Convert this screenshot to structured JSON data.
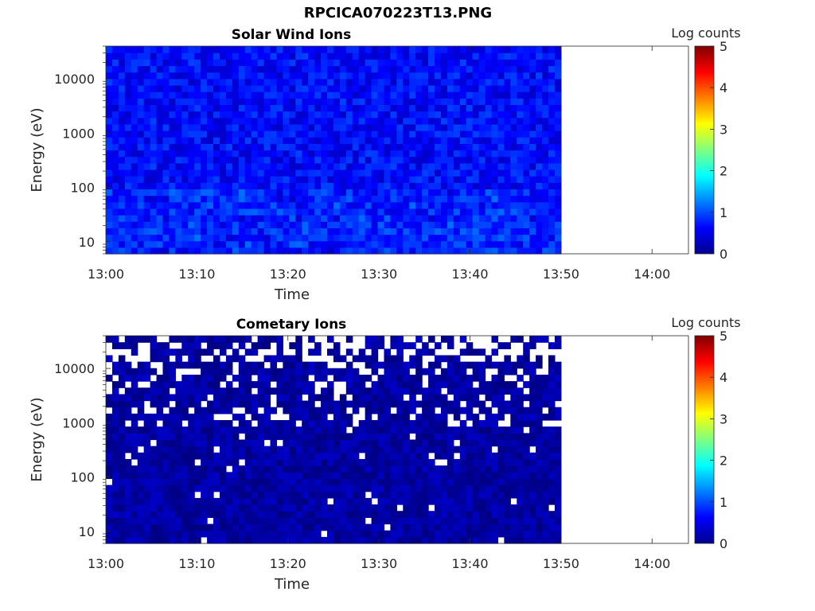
{
  "figure": {
    "title": "RPCICA070223T13.PNG"
  },
  "chart_data": [
    {
      "type": "heatmap",
      "title": "Solar Wind Ions",
      "xlabel": "Time",
      "ylabel": "Energy (eV)",
      "x_ticks": [
        "13:00",
        "13:10",
        "13:20",
        "13:30",
        "13:40",
        "13:50",
        "14:00"
      ],
      "xlim": [
        "13:00",
        "14:04"
      ],
      "data_end": "13:50",
      "y_scale": "log",
      "y_ticks": [
        10,
        100,
        1000,
        10000
      ],
      "ylim": [
        6,
        40000
      ],
      "colorbar": {
        "label": "Log counts",
        "ticks": [
          0,
          1,
          2,
          3,
          4,
          5
        ],
        "range": [
          0,
          5
        ],
        "colormap": "jet"
      },
      "value_description": "mostly 0.3–1.2 log counts across all energies",
      "typical_range": [
        0.3,
        1.2
      ]
    },
    {
      "type": "heatmap",
      "title": "Cometary Ions",
      "xlabel": "Time",
      "ylabel": "Energy (eV)",
      "x_ticks": [
        "13:00",
        "13:10",
        "13:20",
        "13:30",
        "13:40",
        "13:50",
        "14:00"
      ],
      "xlim": [
        "13:00",
        "14:04"
      ],
      "data_end": "13:50",
      "y_scale": "log",
      "y_ticks": [
        10,
        100,
        1000,
        10000
      ],
      "ylim": [
        6,
        40000
      ],
      "colorbar": {
        "label": "Log counts",
        "ticks": [
          0,
          1,
          2,
          3,
          4,
          5
        ],
        "range": [
          0,
          5
        ],
        "colormap": "jet"
      },
      "value_description": "near 0 with many empty (white) bins at high energies",
      "typical_range": [
        0,
        0.3
      ]
    }
  ]
}
